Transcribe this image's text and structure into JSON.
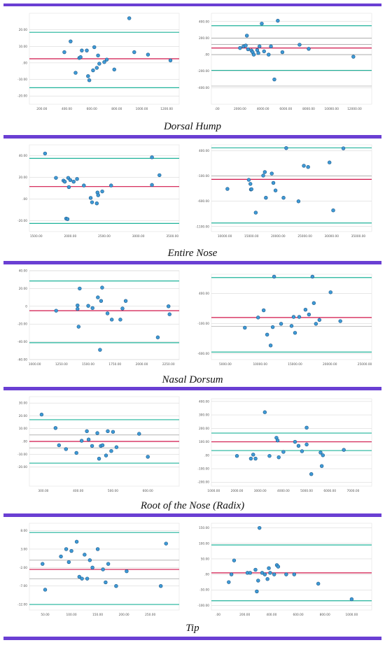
{
  "colors": {
    "band": "#6a3fd3",
    "point_fill": "#3e9ad6",
    "point_stroke": "#1f5a8a",
    "mean_line": "#d0154a",
    "loa_line": "#1fb39a",
    "grid": "#cfcfcf",
    "extra_line": "#888888"
  },
  "captions": [
    "Dorsal Hump",
    "Entire Nose",
    "Nasal Dorsum",
    "Root of the Nose (Radix)",
    "Tip"
  ],
  "chart_data": [
    {
      "type": "scatter",
      "group": "Dorsal Hump",
      "side": "left",
      "xlim": [
        100,
        1300
      ],
      "ylim": [
        -25,
        30
      ],
      "xticks": [
        "200.00",
        "400.00",
        "600.00",
        "800.00",
        "1000.00",
        "1200.00"
      ],
      "xtick_values": [
        200,
        400,
        600,
        800,
        1000,
        1200
      ],
      "yticks": [
        "20.00",
        "10.00",
        ".00",
        "-10.00",
        "-20.00"
      ],
      "ytick_values": [
        20,
        10,
        0,
        -10,
        -20
      ],
      "hlines": {
        "mean": 2.5,
        "loa": [
          18.5,
          -15
        ],
        "extra": []
      },
      "points": [
        [
          380,
          6.5
        ],
        [
          430,
          13
        ],
        [
          470,
          -6
        ],
        [
          500,
          3
        ],
        [
          510,
          3.5
        ],
        [
          520,
          7.5
        ],
        [
          560,
          7.5
        ],
        [
          570,
          -8
        ],
        [
          580,
          -10.5
        ],
        [
          610,
          -4.5
        ],
        [
          620,
          9.5
        ],
        [
          640,
          -3
        ],
        [
          650,
          4.5
        ],
        [
          660,
          -0.5
        ],
        [
          700,
          0.5
        ],
        [
          720,
          2
        ],
        [
          780,
          -4
        ],
        [
          900,
          27
        ],
        [
          940,
          6.5
        ],
        [
          1050,
          5
        ],
        [
          1230,
          1.5
        ]
      ]
    },
    {
      "type": "scatter",
      "group": "Dorsal Hump",
      "side": "right",
      "xlim": [
        -500,
        13500
      ],
      "ylim": [
        -600,
        500
      ],
      "xticks": [
        ".00",
        "2000.00",
        "4000.00",
        "6000.00",
        "8000.00",
        "10000.00",
        "12000.00"
      ],
      "xtick_values": [
        0,
        2000,
        4000,
        6000,
        8000,
        10000,
        12000
      ],
      "yticks": [
        "400.00",
        "200.00",
        ".00",
        "-200.00",
        "-400.00"
      ],
      "ytick_values": [
        400,
        200,
        0,
        -200,
        -400
      ],
      "hlines": {
        "mean": 80,
        "loa": [
          350,
          -190
        ],
        "extra": [
          125,
          0,
          200,
          -380
        ]
      },
      "points": [
        [
          2000,
          80
        ],
        [
          2300,
          100
        ],
        [
          2500,
          110
        ],
        [
          2600,
          230
        ],
        [
          2700,
          65
        ],
        [
          3000,
          50
        ],
        [
          3100,
          30
        ],
        [
          3200,
          0
        ],
        [
          3500,
          55
        ],
        [
          3600,
          20
        ],
        [
          3700,
          100
        ],
        [
          3900,
          375
        ],
        [
          4100,
          40
        ],
        [
          4500,
          0
        ],
        [
          4700,
          100
        ],
        [
          5000,
          -300
        ],
        [
          5300,
          410
        ],
        [
          5700,
          30
        ],
        [
          7200,
          120
        ],
        [
          8000,
          70
        ],
        [
          11900,
          -25
        ]
      ]
    },
    {
      "type": "scatter",
      "group": "Entire Nose",
      "side": "left",
      "xlim": [
        1400,
        3600
      ],
      "ylim": [
        -30,
        50
      ],
      "xticks": [
        "1500.00",
        "2000.00",
        "2500.00",
        "3000.00",
        "3500.00"
      ],
      "xtick_values": [
        1500,
        2000,
        2500,
        3000,
        3500
      ],
      "yticks": [
        "40.00",
        "20.00",
        ".00",
        "-20.00"
      ],
      "ytick_values": [
        40,
        20,
        0,
        -20
      ],
      "hlines": {
        "mean": 11.5,
        "loa": [
          37.5,
          -22.5
        ],
        "extra": []
      },
      "points": [
        [
          1630,
          42
        ],
        [
          1790,
          19.5
        ],
        [
          1900,
          17
        ],
        [
          1920,
          16
        ],
        [
          1940,
          -18
        ],
        [
          1960,
          -18.5
        ],
        [
          1970,
          19.5
        ],
        [
          1980,
          11
        ],
        [
          2000,
          17.5
        ],
        [
          2050,
          16
        ],
        [
          2100,
          18.5
        ],
        [
          2200,
          12.5
        ],
        [
          2300,
          1
        ],
        [
          2320,
          -3
        ],
        [
          2390,
          -4
        ],
        [
          2400,
          6
        ],
        [
          2410,
          3.5
        ],
        [
          2470,
          7
        ],
        [
          2600,
          12.5
        ],
        [
          3200,
          38.5
        ],
        [
          3200,
          13
        ],
        [
          3310,
          22
        ]
      ]
    },
    {
      "type": "scatter",
      "group": "Entire Nose",
      "side": "right",
      "xlim": [
        7500,
        37500
      ],
      "ylim": [
        -1200,
        520
      ],
      "xticks": [
        "10000.00",
        "15000.00",
        "20000.00",
        "25000.00",
        "30000.00",
        "35000.00"
      ],
      "xtick_values": [
        10000,
        15000,
        20000,
        25000,
        30000,
        35000
      ],
      "yticks": [
        "400.00",
        "-100.00",
        "-600.00",
        "-1100.00"
      ],
      "yticks_shown": [
        "400.00",
        "-100.00",
        "-600.00",
        "-1100.00"
      ],
      "ytick_values": [
        400,
        -100,
        -600,
        -1100
      ],
      "hlines": {
        "mean": -165,
        "loa": [
          460,
          -1030
        ],
        "extra": [
          -100
        ]
      },
      "points": [
        [
          10500,
          -355
        ],
        [
          14500,
          -175
        ],
        [
          14800,
          -255
        ],
        [
          14900,
          -365
        ],
        [
          15000,
          -360
        ],
        [
          15800,
          -825
        ],
        [
          17200,
          -90
        ],
        [
          17500,
          -20
        ],
        [
          17700,
          -530
        ],
        [
          18800,
          -50
        ],
        [
          19100,
          -235
        ],
        [
          19500,
          -385
        ],
        [
          21000,
          -530
        ],
        [
          21500,
          455
        ],
        [
          23800,
          -600
        ],
        [
          24800,
          105
        ],
        [
          25600,
          80
        ],
        [
          29600,
          170
        ],
        [
          30300,
          -780
        ],
        [
          32200,
          450
        ]
      ]
    },
    {
      "type": "scatter",
      "group": "Nasal Dorsum",
      "side": "left",
      "xlim": [
        950,
        2350
      ],
      "ylim": [
        -60,
        40
      ],
      "xticks": [
        "1000.00",
        "1250.00",
        "1500.00",
        "1750.00",
        "2000.00",
        "2250.00"
      ],
      "xtick_values": [
        1000,
        1250,
        1500,
        1750,
        2000,
        2250
      ],
      "yticks": [
        "40.00",
        "20.00",
        "0",
        "-20.00",
        "-40.00",
        "-60.00"
      ],
      "ytick_values": [
        40,
        20,
        0,
        -20,
        -40,
        -60
      ],
      "hlines": {
        "mean": -5,
        "loa": [
          28.5,
          -41
        ],
        "extra": []
      },
      "points": [
        [
          1200,
          -5
        ],
        [
          1400,
          -3
        ],
        [
          1400,
          1
        ],
        [
          1410,
          -23
        ],
        [
          1420,
          20
        ],
        [
          1500,
          0.5
        ],
        [
          1540,
          -2
        ],
        [
          1590,
          10
        ],
        [
          1610,
          -49
        ],
        [
          1620,
          6
        ],
        [
          1630,
          21
        ],
        [
          1680,
          -8
        ],
        [
          1720,
          -15
        ],
        [
          1800,
          -15
        ],
        [
          1820,
          -2.5
        ],
        [
          1850,
          6
        ],
        [
          2150,
          -35
        ],
        [
          2250,
          0
        ],
        [
          2260,
          -9
        ]
      ]
    },
    {
      "type": "scatter",
      "group": "Nasal Dorsum",
      "side": "right",
      "xlim": [
        3000,
        26000
      ],
      "ylim": [
        -700,
        720
      ],
      "xticks": [
        "5000.00",
        "10000.00",
        "15000.00",
        "20000.00",
        "25000.00"
      ],
      "xtick_values": [
        5000,
        10000,
        15000,
        20000,
        25000
      ],
      "yticks": [
        "800.00",
        "400.00",
        "-100.00",
        "-600.00"
      ],
      "ytick_values": [
        800,
        400,
        -100,
        -600
      ],
      "hlines": {
        "mean": 0,
        "loa": [
          665,
          -575
        ],
        "extra": [
          -150
        ]
      },
      "points": [
        [
          7800,
          -170
        ],
        [
          9700,
          0
        ],
        [
          10500,
          120
        ],
        [
          11000,
          -285
        ],
        [
          11500,
          -465
        ],
        [
          11800,
          -160
        ],
        [
          12000,
          680
        ],
        [
          13000,
          -105
        ],
        [
          14500,
          -140
        ],
        [
          14800,
          10
        ],
        [
          15000,
          -255
        ],
        [
          15600,
          10
        ],
        [
          16500,
          130
        ],
        [
          17000,
          50
        ],
        [
          17500,
          680
        ],
        [
          17700,
          240
        ],
        [
          18000,
          -105
        ],
        [
          18500,
          -40
        ],
        [
          20100,
          420
        ],
        [
          21500,
          -60
        ]
      ]
    },
    {
      "type": "scatter",
      "group": "Root of the Nose (Radix)",
      "side": "left",
      "xlim": [
        260,
        690
      ],
      "ylim": [
        -35,
        35
      ],
      "xticks": [
        "300.00",
        "400.00",
        "500.00",
        "600.00",
        "700.00"
      ],
      "xtick_values": [
        300,
        400,
        500,
        600,
        700
      ],
      "yticks": [
        "30.00",
        "20.00",
        "10.00",
        ".00",
        "-10.00",
        "-20.00"
      ],
      "ytick_values": [
        30,
        20,
        10,
        0,
        -10,
        -20
      ],
      "hlines": {
        "mean": 0,
        "loa": [
          17,
          -17
        ],
        "extra": [
          5,
          -5
        ]
      },
      "points": [
        [
          295,
          21
        ],
        [
          335,
          10.5
        ],
        [
          345,
          -3
        ],
        [
          365,
          -6
        ],
        [
          395,
          -9
        ],
        [
          410,
          0.5
        ],
        [
          425,
          8
        ],
        [
          430,
          1.5
        ],
        [
          440,
          -3.5
        ],
        [
          455,
          6.5
        ],
        [
          460,
          -13.5
        ],
        [
          465,
          -3.5
        ],
        [
          470,
          -3
        ],
        [
          480,
          -11
        ],
        [
          485,
          8
        ],
        [
          495,
          -7.5
        ],
        [
          500,
          7.5
        ],
        [
          510,
          -4.5
        ],
        [
          575,
          6
        ],
        [
          600,
          -12
        ]
      ]
    },
    {
      "type": "scatter",
      "group": "Root of the Nose (Radix)",
      "side": "right",
      "xlim": [
        900,
        7800
      ],
      "ylim": [
        -230,
        420
      ],
      "xticks": [
        "1000.00",
        "2000.00",
        "3000.00",
        "4000.00",
        "5000.00",
        "6000.00",
        "7000.00"
      ],
      "xtick_values": [
        1000,
        2000,
        3000,
        4000,
        5000,
        6000,
        7000
      ],
      "yticks": [
        "400.00",
        "300.00",
        "200.00",
        "100.00",
        ".00",
        "-100.00",
        "-200.00"
      ],
      "ytick_values": [
        400,
        300,
        200,
        100,
        0,
        -100,
        -200
      ],
      "hlines": {
        "mean": 100,
        "loa": [
          165,
          35
        ],
        "extra": []
      },
      "points": [
        [
          2000,
          -5
        ],
        [
          2600,
          -25
        ],
        [
          2700,
          5
        ],
        [
          2800,
          -25
        ],
        [
          3200,
          320
        ],
        [
          3400,
          -5
        ],
        [
          3700,
          130
        ],
        [
          3750,
          110
        ],
        [
          3800,
          -15
        ],
        [
          4000,
          25
        ],
        [
          4500,
          100
        ],
        [
          4650,
          70
        ],
        [
          4800,
          30
        ],
        [
          5000,
          205
        ],
        [
          5000,
          80
        ],
        [
          5200,
          -140
        ],
        [
          5600,
          20
        ],
        [
          5650,
          -80
        ],
        [
          5700,
          0
        ],
        [
          6600,
          40
        ]
      ]
    },
    {
      "type": "scatter",
      "group": "Tip",
      "side": "left",
      "xlim": [
        20,
        305
      ],
      "ylim": [
        -13.5,
        10
      ],
      "xticks": [
        "50.00",
        "100.00",
        "150.00",
        "200.00",
        "250.00"
      ],
      "xtick_values": [
        50,
        100,
        150,
        200,
        250
      ],
      "yticks": [
        "8.00",
        "3.00",
        "-2.00",
        "-7.00",
        "-12.00"
      ],
      "ytick_values": [
        8,
        3,
        -2,
        -7,
        -12
      ],
      "hlines": {
        "mean": -2.5,
        "loa": [
          7.5,
          -12
        ],
        "extra": [
          -5,
          0
        ]
      },
      "points": [
        [
          45,
          -1
        ],
        [
          50,
          -8
        ],
        [
          80,
          1
        ],
        [
          90,
          3
        ],
        [
          95,
          -0.5
        ],
        [
          100,
          2.5
        ],
        [
          110,
          5
        ],
        [
          115,
          -4.5
        ],
        [
          120,
          -5
        ],
        [
          125,
          1.5
        ],
        [
          130,
          -5
        ],
        [
          135,
          0
        ],
        [
          140,
          -2
        ],
        [
          150,
          3
        ],
        [
          160,
          -2.5
        ],
        [
          165,
          -6
        ],
        [
          170,
          -1
        ],
        [
          185,
          -7
        ],
        [
          205,
          -3
        ],
        [
          270,
          -7
        ],
        [
          280,
          4.5
        ]
      ]
    },
    {
      "type": "scatter",
      "group": "Tip",
      "side": "right",
      "xlim": [
        -50,
        1150
      ],
      "ylim": [
        -115,
        165
      ],
      "xticks": [
        ".00",
        "200.00",
        "400.00",
        "600.00",
        "800.00",
        "1000.00"
      ],
      "xtick_values": [
        0,
        200,
        400,
        600,
        800,
        1000
      ],
      "yticks": [
        "150.00",
        "100.00",
        "50.00",
        ".00",
        "-50.00",
        "-100.00"
      ],
      "ytick_values": [
        150,
        100,
        50,
        0,
        -50,
        -100
      ],
      "hlines": {
        "mean": 5,
        "loa": [
          95,
          -85
        ],
        "extra": []
      },
      "points": [
        [
          80,
          -25
        ],
        [
          100,
          0
        ],
        [
          120,
          45
        ],
        [
          220,
          5
        ],
        [
          240,
          5
        ],
        [
          280,
          15
        ],
        [
          290,
          -55
        ],
        [
          300,
          -20
        ],
        [
          310,
          150
        ],
        [
          330,
          5
        ],
        [
          350,
          0
        ],
        [
          370,
          -15
        ],
        [
          380,
          20
        ],
        [
          390,
          5
        ],
        [
          420,
          0
        ],
        [
          440,
          30
        ],
        [
          450,
          25
        ],
        [
          510,
          0
        ],
        [
          570,
          0
        ],
        [
          750,
          -30
        ],
        [
          1000,
          -80
        ]
      ]
    }
  ]
}
